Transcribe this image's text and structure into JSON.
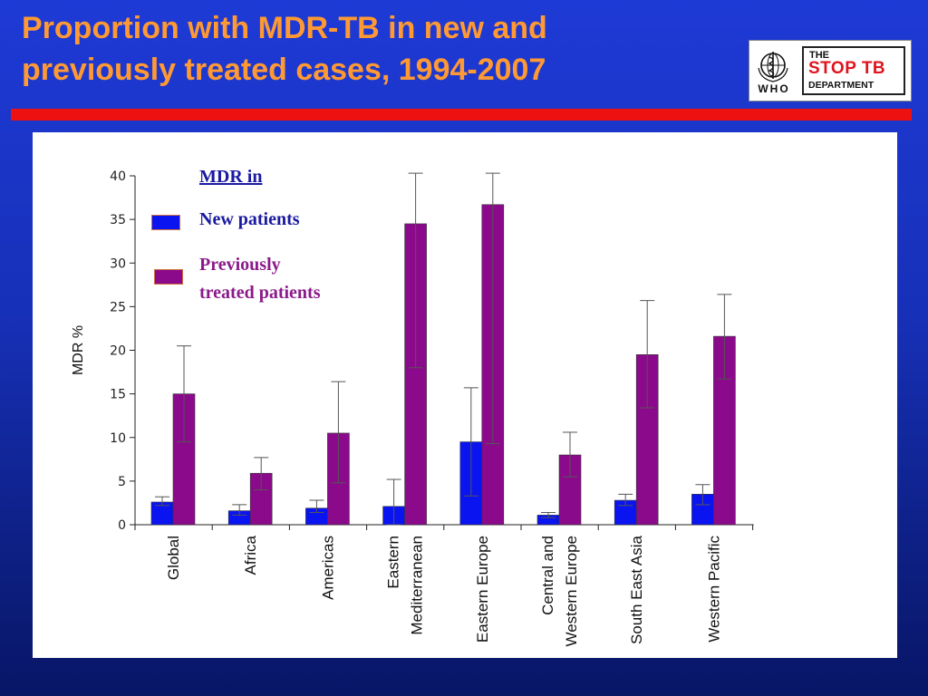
{
  "slide": {
    "title_line1": "Proportion with MDR-TB in new and",
    "title_line2": "previously treated cases, 1994-2007",
    "colors": {
      "title": "#ff9933",
      "background": "#1e3ad6",
      "rule": "#ee1111"
    }
  },
  "logo": {
    "who_text": "WHO",
    "stoptb_the": "THE",
    "stoptb_main": "STOP TB",
    "stoptb_dept": "DEPARTMENT"
  },
  "legend": {
    "title": "MDR in",
    "new_label": "New patients",
    "prev_label": "Previously treated patients"
  },
  "chart_data": {
    "type": "bar",
    "ylabel": "MDR %",
    "ylim": [
      0,
      40
    ],
    "yticks": [
      0,
      5,
      10,
      15,
      20,
      25,
      30,
      35,
      40
    ],
    "categories": [
      [
        "Global"
      ],
      [
        "Africa"
      ],
      [
        "Americas"
      ],
      [
        "Eastern",
        "Mediterranean"
      ],
      [
        "Eastern Europe"
      ],
      [
        "Central and",
        "Western Europe"
      ],
      [
        "South East Asia"
      ],
      [
        "Western Pacific"
      ]
    ],
    "series": [
      {
        "name": "New patients",
        "color": "#0a14f0",
        "values": [
          2.6,
          1.6,
          1.9,
          2.1,
          9.5,
          1.1,
          2.8,
          3.5
        ],
        "error_low": [
          2.2,
          1.1,
          1.4,
          0.0,
          3.3,
          0.8,
          2.2,
          2.3
        ],
        "error_high": [
          3.2,
          2.3,
          2.8,
          5.2,
          15.7,
          1.4,
          3.5,
          4.6
        ]
      },
      {
        "name": "Previously treated patients",
        "color": "#8b0a8b",
        "values": [
          15.0,
          5.9,
          10.5,
          34.5,
          36.7,
          8.0,
          19.5,
          21.6
        ],
        "error_low": [
          9.5,
          4.0,
          4.8,
          18.0,
          9.3,
          5.5,
          13.4,
          16.7
        ],
        "error_high": [
          20.5,
          7.7,
          16.4,
          40.3,
          40.3,
          10.6,
          25.7,
          26.4
        ]
      }
    ]
  }
}
